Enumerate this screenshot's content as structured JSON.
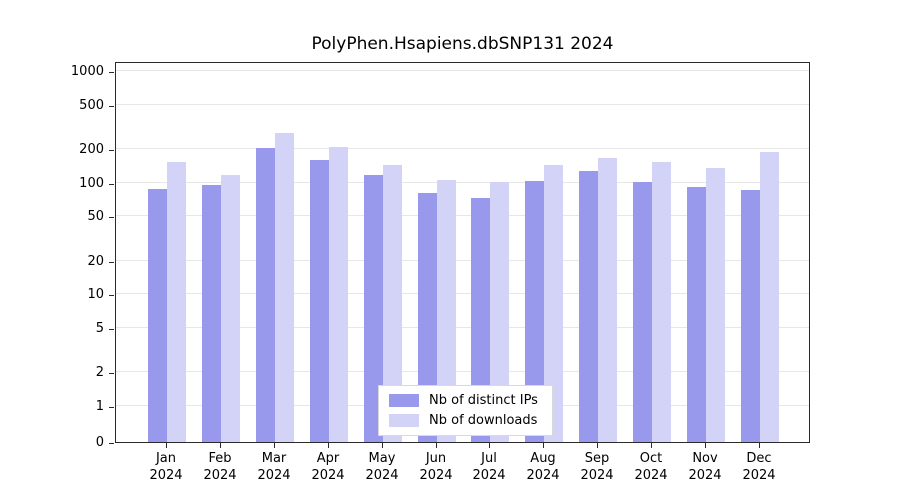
{
  "chart_data": {
    "type": "bar",
    "title": "PolyPhen.Hsapiens.dbSNP131 2024",
    "categories": [
      "Jan",
      "Feb",
      "Mar",
      "Apr",
      "May",
      "Jun",
      "Jul",
      "Aug",
      "Sep",
      "Oct",
      "Nov",
      "Dec"
    ],
    "year_label": "2024",
    "series": [
      {
        "name": "Nb of distinct IPs",
        "color": "#9898ec",
        "values": [
          88,
          95,
          205,
          158,
          118,
          80,
          73,
          104,
          127,
          101,
          92,
          86
        ]
      },
      {
        "name": "Nb of downloads",
        "color": "#d3d3f8",
        "values": [
          152,
          116,
          280,
          210,
          143,
          106,
          101,
          143,
          166,
          152,
          136,
          188
        ]
      }
    ],
    "yticks": [
      0,
      1,
      2,
      5,
      10,
      20,
      50,
      100,
      200,
      500,
      1000
    ],
    "ylim": [
      0,
      1200
    ],
    "yscale": "symlog",
    "grid": true,
    "legend_position": "bottom-center",
    "axis_color": "#2a2a2a",
    "grid_color": "#e7e7e7"
  }
}
